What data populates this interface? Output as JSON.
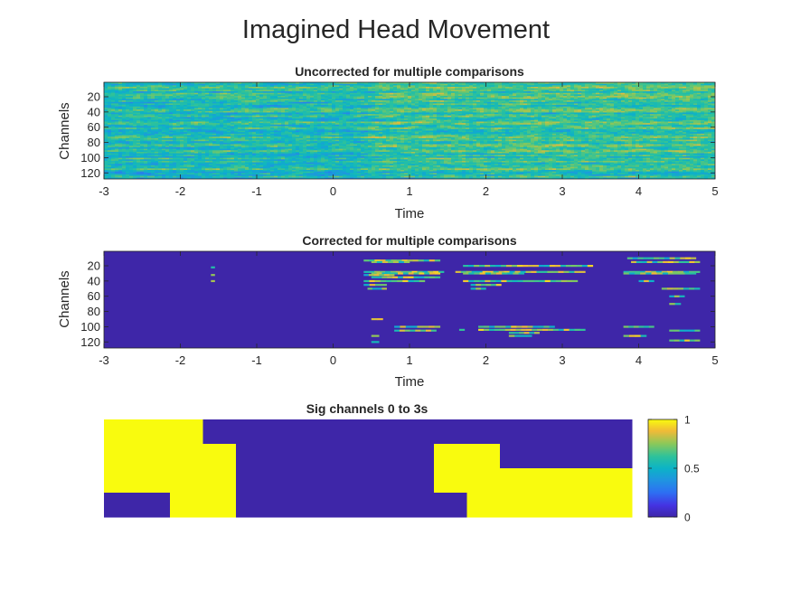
{
  "figure": {
    "title": "Imagined Head Movement"
  },
  "chart_data": [
    {
      "type": "heatmap",
      "title": "Uncorrected for multiple comparisons",
      "xlabel": "Time",
      "ylabel": "Channels",
      "xlim": [
        -3,
        5
      ],
      "ylim": [
        1,
        128
      ],
      "x_ticks": [
        -3,
        -2,
        -1,
        0,
        1,
        2,
        3,
        4,
        5
      ],
      "y_ticks": [
        20,
        40,
        60,
        80,
        100,
        120
      ],
      "y_reversed": true,
      "colormap": "parula",
      "values_description_range": [
        0,
        1
      ],
      "texture": "dense continuous values, mostly mid-range cyan/green with brighter yellow streaks after t=0.5"
    },
    {
      "type": "heatmap",
      "title": "Corrected for multiple comparisons",
      "xlabel": "Time",
      "ylabel": "Channels",
      "xlim": [
        -3,
        5
      ],
      "ylim": [
        1,
        128
      ],
      "x_ticks": [
        -3,
        -2,
        -1,
        0,
        1,
        2,
        3,
        4,
        5
      ],
      "y_ticks": [
        20,
        40,
        60,
        80,
        100,
        120
      ],
      "y_reversed": true,
      "colormap": "parula",
      "background_value": 0,
      "segments": [
        {
          "ch": 13,
          "t0": 0.4,
          "t1": 1.4
        },
        {
          "ch": 15,
          "t0": 0.5,
          "t1": 1.0
        },
        {
          "ch": 28,
          "t0": 0.4,
          "t1": 1.45
        },
        {
          "ch": 30,
          "t0": 0.5,
          "t1": 1.4
        },
        {
          "ch": 32,
          "t0": 0.4,
          "t1": 0.8
        },
        {
          "ch": 35,
          "t0": 0.5,
          "t1": 1.4
        },
        {
          "ch": 40,
          "t0": 0.4,
          "t1": 1.2
        },
        {
          "ch": 45,
          "t0": 0.4,
          "t1": 0.7
        },
        {
          "ch": 50,
          "t0": 0.45,
          "t1": 0.7
        },
        {
          "ch": 90,
          "t0": 0.5,
          "t1": 0.65
        },
        {
          "ch": 100,
          "t0": 0.8,
          "t1": 1.4
        },
        {
          "ch": 105,
          "t0": 0.8,
          "t1": 1.35
        },
        {
          "ch": 112,
          "t0": 0.5,
          "t1": 0.6
        },
        {
          "ch": 120,
          "t0": 0.5,
          "t1": 0.6
        },
        {
          "ch": 20,
          "t0": 1.7,
          "t1": 3.4
        },
        {
          "ch": 28,
          "t0": 1.6,
          "t1": 3.3
        },
        {
          "ch": 30,
          "t0": 1.7,
          "t1": 2.5
        },
        {
          "ch": 40,
          "t0": 1.7,
          "t1": 3.2
        },
        {
          "ch": 45,
          "t0": 1.8,
          "t1": 2.2
        },
        {
          "ch": 50,
          "t0": 1.8,
          "t1": 2.0
        },
        {
          "ch": 100,
          "t0": 1.9,
          "t1": 2.9
        },
        {
          "ch": 104,
          "t0": 1.9,
          "t1": 3.3
        },
        {
          "ch": 108,
          "t0": 2.3,
          "t1": 2.7
        },
        {
          "ch": 112,
          "t0": 2.3,
          "t1": 2.6
        },
        {
          "ch": 104,
          "t0": 1.65,
          "t1": 1.72
        },
        {
          "ch": 10,
          "t0": 3.85,
          "t1": 4.75
        },
        {
          "ch": 15,
          "t0": 3.9,
          "t1": 4.8
        },
        {
          "ch": 28,
          "t0": 3.8,
          "t1": 4.8
        },
        {
          "ch": 30,
          "t0": 3.8,
          "t1": 4.75
        },
        {
          "ch": 40,
          "t0": 4.0,
          "t1": 4.2
        },
        {
          "ch": 50,
          "t0": 4.3,
          "t1": 4.8
        },
        {
          "ch": 60,
          "t0": 4.4,
          "t1": 4.6
        },
        {
          "ch": 70,
          "t0": 4.4,
          "t1": 4.55
        },
        {
          "ch": 100,
          "t0": 3.8,
          "t1": 4.2
        },
        {
          "ch": 105,
          "t0": 4.4,
          "t1": 4.8
        },
        {
          "ch": 112,
          "t0": 3.8,
          "t1": 4.1
        },
        {
          "ch": 118,
          "t0": 4.4,
          "t1": 4.8
        },
        {
          "ch": 22,
          "t0": -1.6,
          "t1": -1.55
        },
        {
          "ch": 32,
          "t0": -1.6,
          "t1": -1.55
        },
        {
          "ch": 40,
          "t0": -1.6,
          "t1": -1.55
        }
      ]
    },
    {
      "type": "heatmap",
      "title": "Sig channels 0 to 3s",
      "colormap": "parula",
      "color_limits": [
        0,
        1
      ],
      "grid_cols": 16,
      "grid_rows": 4,
      "cells": [
        [
          1,
          1,
          1,
          0,
          0,
          0,
          0,
          0,
          0,
          0,
          0,
          0,
          0,
          0,
          0,
          0
        ],
        [
          1,
          1,
          1,
          1,
          0,
          0,
          0,
          0,
          0,
          0,
          1,
          1,
          0,
          0,
          0,
          0
        ],
        [
          1,
          1,
          1,
          1,
          0,
          0,
          0,
          0,
          0,
          0,
          1,
          1,
          1,
          1,
          1,
          1
        ],
        [
          0,
          0,
          1,
          1,
          0,
          0,
          0,
          0,
          0,
          0,
          0,
          1,
          1,
          1,
          1,
          1
        ]
      ],
      "cells_note": "row-major, 0 = blue (low), 1 = yellow (high)",
      "colorbar": {
        "ticks": [
          0,
          0.5,
          1
        ]
      }
    }
  ],
  "colors": {
    "low": "#3e26a8",
    "high": "#f9fb0e",
    "axis": "#262626"
  }
}
